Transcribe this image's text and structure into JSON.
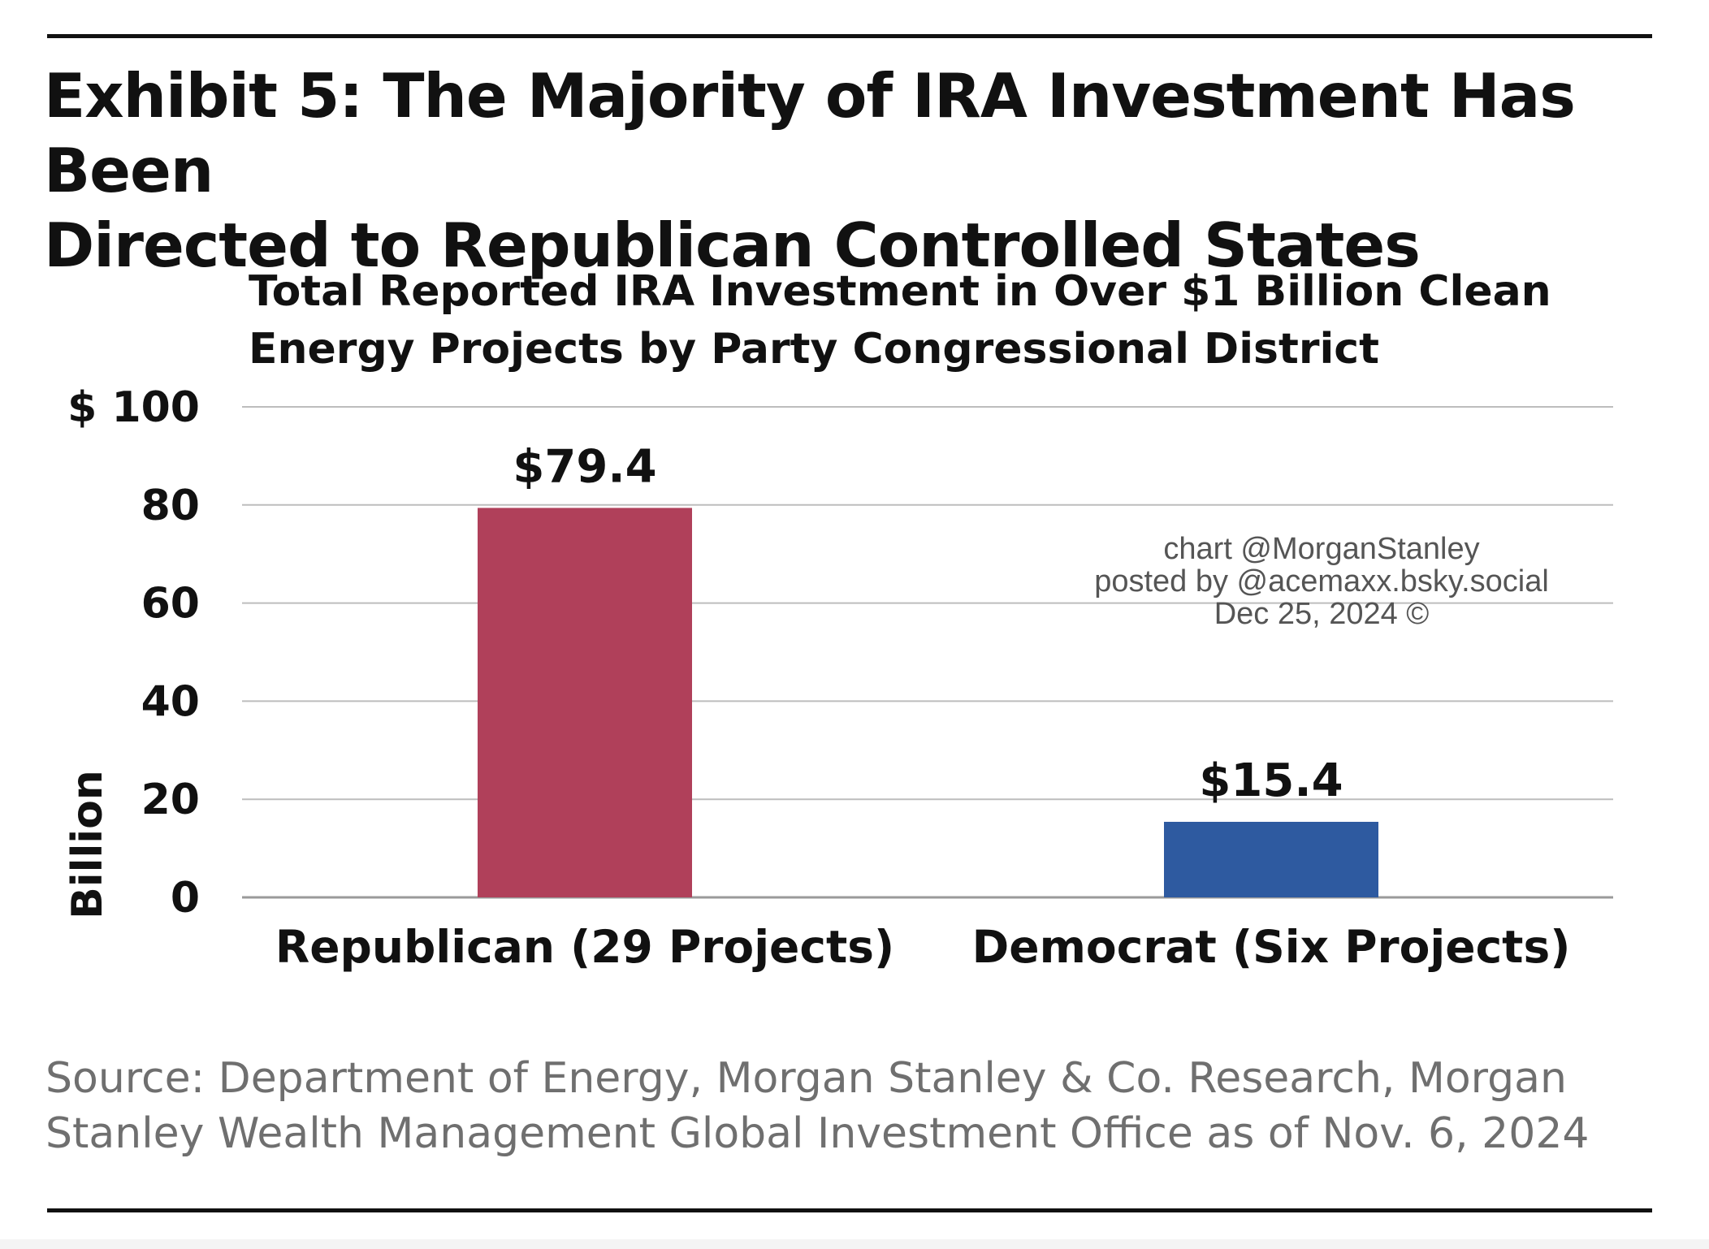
{
  "header": {
    "title_lines": [
      "Exhibit 5: The Majority of IRA Investment Has Been",
      "Directed to Republican Controlled States"
    ]
  },
  "chart_data": {
    "type": "bar",
    "title_lines": [
      "Total Reported IRA Investment in Over $1 Billion Clean",
      "Energy Projects by Party Congressional District"
    ],
    "ylabel": "Billion",
    "ylim": [
      0,
      100
    ],
    "yticks": [
      {
        "value": 100,
        "label": "$ 100"
      },
      {
        "value": 80,
        "label": "80"
      },
      {
        "value": 60,
        "label": "60"
      },
      {
        "value": 40,
        "label": "40"
      },
      {
        "value": 20,
        "label": "20"
      },
      {
        "value": 0,
        "label": "0"
      }
    ],
    "categories": [
      "Republican (29 Projects)",
      "Democrat (Six Projects)"
    ],
    "values": [
      79.4,
      15.4
    ],
    "data_labels": [
      "$79.4",
      "$15.4"
    ],
    "colors": [
      "#b0405a",
      "#2e5aa0"
    ],
    "grid": true,
    "legend": "none"
  },
  "watermark": {
    "lines": [
      "chart @MorganStanley",
      "posted by @acemaxx.bsky.social",
      "Dec 25, 2024 ©"
    ]
  },
  "footer": {
    "source_lines": [
      "Source: Department of Energy, Morgan Stanley & Co. Research, Morgan",
      "Stanley Wealth Management Global Investment Office as of Nov. 6, 2024"
    ]
  },
  "colors": {
    "gridline": "#bdbdbd",
    "axis": "#9a9a9a",
    "rule": "#111111",
    "source_text": "#6f6f6f",
    "watermark_text": "#555555"
  }
}
